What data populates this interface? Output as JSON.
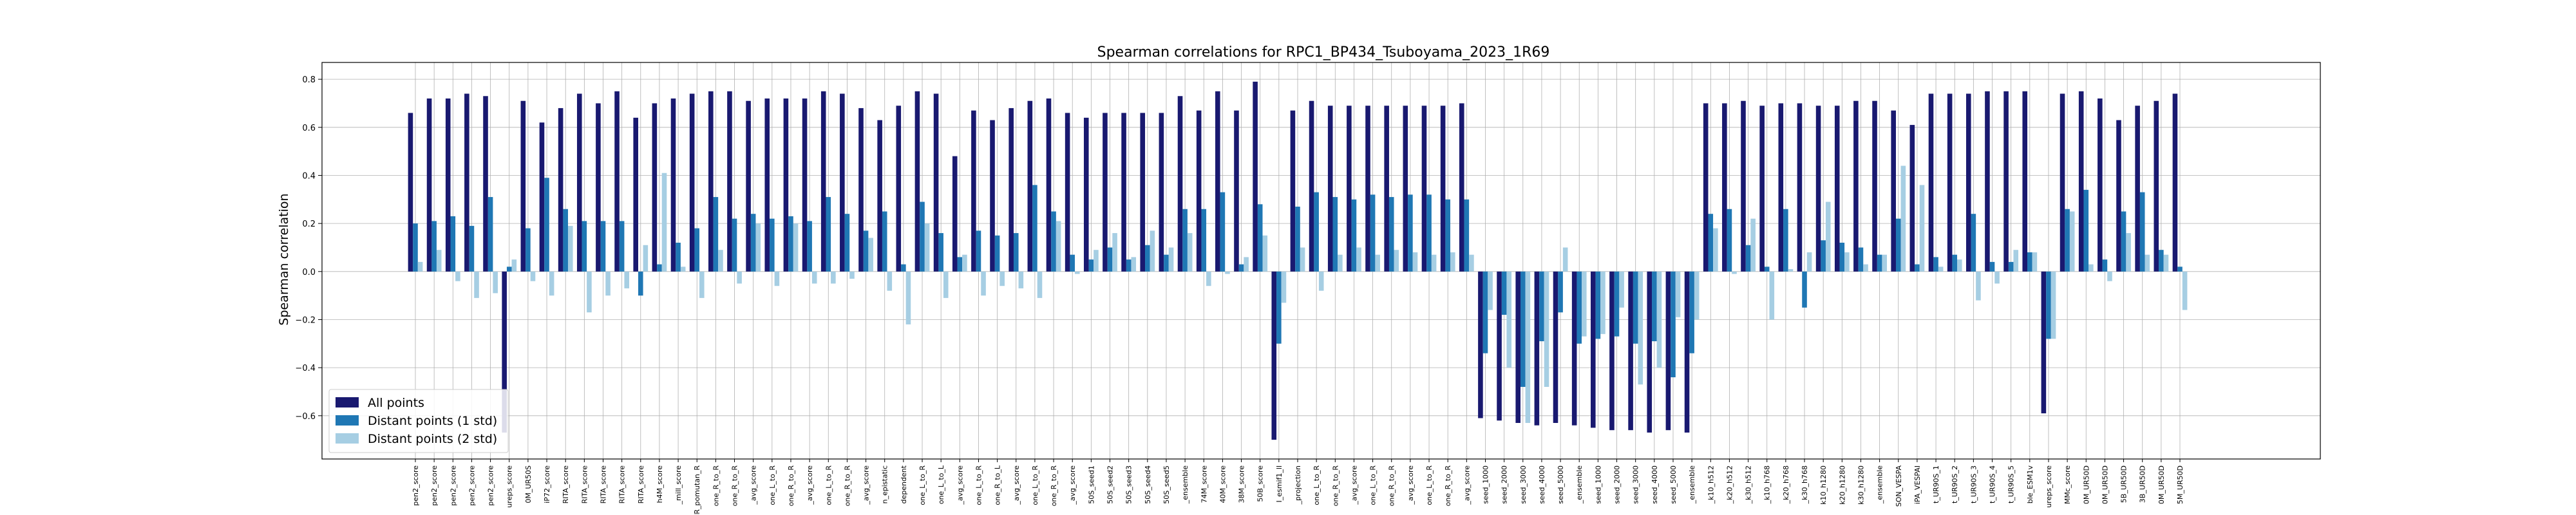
{
  "chart_data": {
    "type": "bar",
    "title": "Spearman correlations for RPC1_BP434_Tsuboyama_2023_1R69",
    "ylabel": "Spearman correlation",
    "xlabel": "",
    "ylim": [
      -0.78,
      0.87
    ],
    "yticks": [
      -0.6,
      -0.4,
      -0.2,
      0.0,
      0.2,
      0.4,
      0.6,
      0.8
    ],
    "ytick_labels": [
      "−0.6",
      "−0.4",
      "−0.2",
      "0.0",
      "0.2",
      "0.4",
      "0.6",
      "0.8"
    ],
    "grid": true,
    "legend_position": "lower-left",
    "colors": [
      "#191970",
      "#1f77b4",
      "#a6cee3"
    ],
    "categories": [
      "pen2_score",
      "pen2_score",
      "pen2_score",
      "pen2_score",
      "pen2_score",
      "ureps_score",
      "0M_UR50S",
      "iP72_score",
      "RITA_score",
      "RITA_score",
      "RITA_score",
      "RITA_score",
      "RITA_score",
      "h4M_score",
      "_mill_score",
      "IR_pomutan_R",
      "one_R_to_R",
      "one_R_to_R",
      "_avg_score",
      "one_L_to_R",
      "one_R_to_R",
      "_avg_score",
      "one_L_to_R",
      "one_R_to_R",
      "_avg_score",
      "n_epistatic",
      "dependent",
      "one_L_to_R",
      "one_L_to_L",
      "_avg_score",
      "one_L_to_R",
      "one_R_to_L",
      "_avg_score",
      "one_L_to_R",
      "one_R_to_R",
      "_avg_score",
      "50S_seed1",
      "50S_seed2",
      "50S_seed3",
      "50S_seed4",
      "50S_seed5",
      "_ensemble",
      "74M_score",
      "40M_score",
      "38M_score",
      "50B_score",
      "I_esmif1_ll",
      "_projection",
      "one_L_to_R",
      "one_R_to_R",
      "_avg_score",
      "one_L_to_R",
      "one_R_to_R",
      "_avg_score",
      "one_L_to_R",
      "one_R_to_R",
      "_avg_score",
      "seed_1000",
      "seed_2000",
      "seed_3000",
      "seed_4000",
      "seed_5000",
      "_ensemble",
      "seed_1000",
      "seed_2000",
      "seed_3000",
      "seed_4000",
      "seed_5000",
      "_ensemble",
      "_k10_h512",
      "_k20_h512",
      "_k30_h512",
      "_k10_h768",
      "_k20_h768",
      "_k30_h768",
      "k10_h1280",
      "k20_h1280",
      "k30_h1280",
      "_ensemble",
      "SON_VESPA",
      "iPA_VESPAI",
      "t_UR90S_1",
      "t_UR90S_2",
      "t_UR90S_3",
      "t_UR90S_4",
      "t_UR90S_5",
      "ble_ESM1v",
      "ureps_score",
      "MMc_score",
      "0M_UR50D",
      "0M_UR50D",
      "5B_UR50D",
      "3B_UR50D",
      "0M_UR50D",
      "5M_UR50D"
    ],
    "series": [
      {
        "name": "All points",
        "values": [
          0.66,
          0.72,
          0.72,
          0.74,
          0.73,
          -0.67,
          0.71,
          0.62,
          0.68,
          0.74,
          0.7,
          0.75,
          0.64,
          0.7,
          0.72,
          0.74,
          0.75,
          0.75,
          0.71,
          0.72,
          0.72,
          0.72,
          0.75,
          0.74,
          0.68,
          0.63,
          0.69,
          0.75,
          0.74,
          0.48,
          0.67,
          0.63,
          0.68,
          0.71,
          0.72,
          0.66,
          0.64,
          0.66,
          0.66,
          0.66,
          0.66,
          0.73,
          0.67,
          0.75,
          0.67,
          0.79,
          -0.7,
          0.67,
          0.71,
          0.69,
          0.69,
          0.69,
          0.69,
          0.69,
          0.69,
          0.69,
          0.7,
          -0.61,
          -0.62,
          -0.63,
          -0.64,
          -0.63,
          -0.64,
          -0.65,
          -0.66,
          -0.66,
          -0.67,
          -0.66,
          -0.67,
          0.7,
          0.7,
          0.71,
          0.69,
          0.7,
          0.7,
          0.69,
          0.69,
          0.71,
          0.71,
          0.67,
          0.61,
          0.74,
          0.74,
          0.74,
          0.75,
          0.75,
          0.75,
          -0.59,
          0.74,
          0.75,
          0.72,
          0.63,
          0.69,
          0.71,
          0.74
        ]
      },
      {
        "name": "Distant points (1 std)",
        "values": [
          0.2,
          0.21,
          0.23,
          0.19,
          0.31,
          0.02,
          0.18,
          0.39,
          0.26,
          0.21,
          0.21,
          0.21,
          -0.1,
          0.03,
          0.12,
          0.18,
          0.31,
          0.22,
          0.24,
          0.22,
          0.23,
          0.21,
          0.31,
          0.24,
          0.17,
          0.25,
          0.03,
          0.29,
          0.16,
          0.06,
          0.17,
          0.15,
          0.16,
          0.36,
          0.25,
          0.07,
          0.05,
          0.1,
          0.05,
          0.11,
          0.07,
          0.26,
          0.26,
          0.33,
          0.03,
          0.28,
          -0.3,
          0.27,
          0.33,
          0.31,
          0.3,
          0.32,
          0.31,
          0.32,
          0.32,
          0.3,
          0.3,
          -0.34,
          -0.18,
          -0.48,
          -0.29,
          -0.17,
          -0.3,
          -0.28,
          -0.27,
          -0.3,
          -0.29,
          -0.44,
          -0.34,
          0.24,
          0.26,
          0.11,
          0.02,
          0.26,
          -0.15,
          0.13,
          0.12,
          0.1,
          0.07,
          0.22,
          0.03,
          0.06,
          0.07,
          0.24,
          0.04,
          0.04,
          0.08,
          -0.28,
          0.26,
          0.34,
          0.05,
          0.25,
          0.33,
          0.09,
          0.02
        ]
      },
      {
        "name": "Distant points (2 std)",
        "values": [
          0.04,
          0.09,
          -0.04,
          -0.11,
          -0.09,
          0.05,
          -0.04,
          -0.1,
          0.19,
          -0.17,
          -0.1,
          -0.07,
          0.11,
          0.41,
          0.02,
          -0.11,
          0.09,
          -0.05,
          0.2,
          -0.06,
          0.2,
          -0.05,
          -0.05,
          -0.03,
          0.14,
          -0.08,
          -0.22,
          0.2,
          -0.11,
          0.07,
          -0.1,
          -0.06,
          -0.07,
          -0.11,
          0.21,
          -0.01,
          0.09,
          0.16,
          0.06,
          0.17,
          0.1,
          0.16,
          -0.06,
          -0.01,
          0.06,
          0.15,
          -0.13,
          0.1,
          -0.08,
          0.07,
          0.1,
          0.07,
          0.09,
          0.08,
          0.07,
          0.08,
          0.07,
          -0.16,
          -0.4,
          -0.63,
          -0.48,
          0.1,
          -0.27,
          -0.26,
          -0.15,
          -0.47,
          -0.4,
          -0.19,
          -0.2,
          0.18,
          -0.01,
          0.22,
          -0.2,
          0.01,
          0.08,
          0.29,
          0.08,
          0.03,
          0.07,
          0.44,
          0.36,
          0.02,
          0.05,
          -0.12,
          -0.05,
          0.09,
          0.08,
          -0.28,
          0.25,
          0.03,
          -0.04,
          0.16,
          0.07,
          0.07,
          -0.16
        ]
      }
    ]
  }
}
